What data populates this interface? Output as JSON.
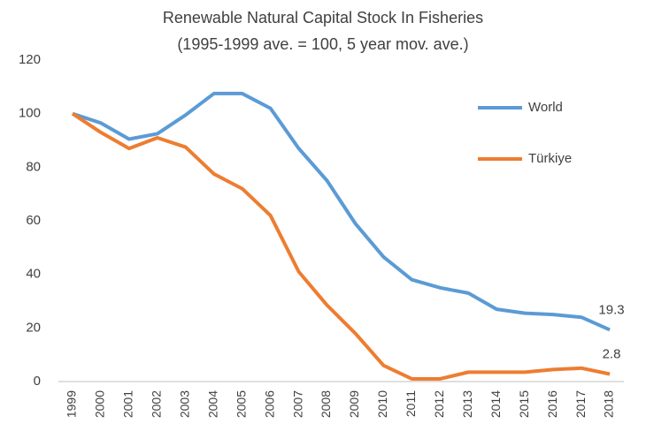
{
  "chart_data": {
    "type": "line",
    "title": "Renewable Natural Capital Stock In Fisheries",
    "subtitle": "(1995-1999 ave. = 100, 5 year mov. ave.)",
    "categories": [
      "1999",
      "2000",
      "2001",
      "2002",
      "2003",
      "2004",
      "2005",
      "2006",
      "2007",
      "2008",
      "2009",
      "2010",
      "2011",
      "2012",
      "2013",
      "2014",
      "2015",
      "2016",
      "2017",
      "2018"
    ],
    "series": [
      {
        "name": "World",
        "color": "#5b9bd5",
        "values": [
          100,
          96.5,
          90.5,
          92.5,
          99.5,
          107.5,
          107.5,
          102,
          87,
          75,
          59,
          46.5,
          38,
          35,
          33,
          27,
          25.5,
          25,
          24,
          19.3
        ]
      },
      {
        "name": "Türkiye",
        "color": "#ed7d31",
        "values": [
          100,
          93,
          87,
          91,
          87.5,
          77.5,
          72,
          62,
          41,
          28.5,
          18,
          6,
          1,
          1,
          3.5,
          3.5,
          3.5,
          4.5,
          5,
          2.8
        ]
      }
    ],
    "ylim": [
      0,
      120
    ],
    "yticks": [
      0,
      20,
      40,
      60,
      80,
      100,
      120
    ],
    "grid": false
  }
}
